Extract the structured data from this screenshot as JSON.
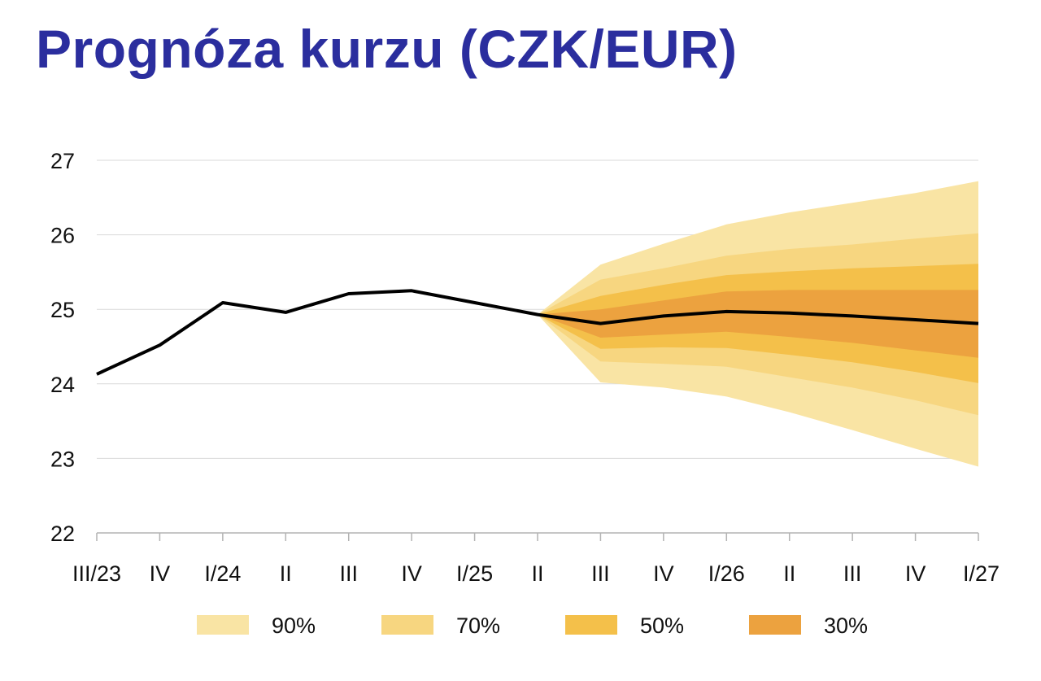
{
  "page_title": "Prognóza kurzu (CZK/EUR)",
  "chart_data": {
    "type": "area",
    "title": "Prognóza kurzu (CZK/EUR)",
    "xlabel": "",
    "ylabel": "",
    "x_tick_labels": [
      "III/23",
      "IV",
      "I/24",
      "II",
      "III",
      "IV",
      "I/25",
      "II",
      "III",
      "IV",
      "I/26",
      "II",
      "III",
      "IV",
      "I/27"
    ],
    "y_ticks": [
      22,
      23,
      24,
      25,
      26,
      27
    ],
    "ylim": [
      22,
      27
    ],
    "grid": true,
    "legend_position": "bottom",
    "series": [
      {
        "values": [
          24.13,
          24.52,
          25.09,
          24.96,
          25.21,
          25.25,
          25.09,
          24.93,
          24.81,
          24.91,
          24.97,
          24.95,
          24.91,
          24.86,
          24.81
        ],
        "color": "#000000"
      }
    ],
    "fan_start_index": 7,
    "bands": [
      {
        "label": "90%",
        "color": "#f9e4a4",
        "lower": [
          null,
          null,
          null,
          null,
          null,
          null,
          null,
          24.93,
          24.02,
          23.95,
          23.83,
          23.62,
          23.38,
          23.13,
          22.89
        ],
        "upper": [
          null,
          null,
          null,
          null,
          null,
          null,
          null,
          24.93,
          25.6,
          25.88,
          26.14,
          26.3,
          26.43,
          26.56,
          26.72
        ]
      },
      {
        "label": "70%",
        "color": "#f7d680",
        "lower": [
          null,
          null,
          null,
          null,
          null,
          null,
          null,
          24.93,
          24.3,
          24.27,
          24.23,
          24.09,
          23.95,
          23.78,
          23.58
        ],
        "upper": [
          null,
          null,
          null,
          null,
          null,
          null,
          null,
          24.93,
          25.4,
          25.55,
          25.72,
          25.81,
          25.87,
          25.95,
          26.02
        ]
      },
      {
        "label": "50%",
        "color": "#f4c04a",
        "lower": [
          null,
          null,
          null,
          null,
          null,
          null,
          null,
          24.93,
          24.47,
          24.49,
          24.48,
          24.39,
          24.29,
          24.16,
          24.01
        ],
        "upper": [
          null,
          null,
          null,
          null,
          null,
          null,
          null,
          24.93,
          25.18,
          25.33,
          25.46,
          25.51,
          25.55,
          25.58,
          25.61
        ]
      },
      {
        "label": "30%",
        "color": "#eca23f",
        "lower": [
          null,
          null,
          null,
          null,
          null,
          null,
          null,
          24.93,
          24.62,
          24.66,
          24.7,
          24.63,
          24.55,
          24.45,
          24.35
        ],
        "upper": [
          null,
          null,
          null,
          null,
          null,
          null,
          null,
          24.93,
          25.0,
          25.12,
          25.24,
          25.26,
          25.26,
          25.26,
          25.26
        ]
      }
    ]
  }
}
